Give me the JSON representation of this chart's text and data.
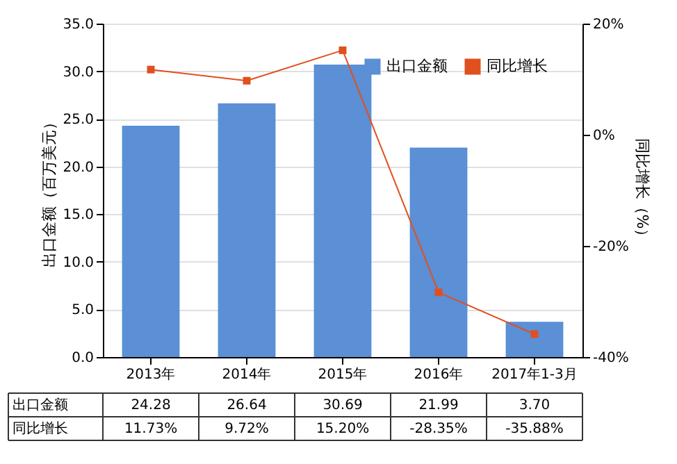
{
  "chart_data": {
    "type": "bar",
    "categories": [
      "2013年",
      "2014年",
      "2015年",
      "2016年",
      "2017年1-3月"
    ],
    "ylabel": "出口金额（百万美元）",
    "y2label": "同比增长（%）",
    "series": [
      {
        "name": "出口金额",
        "color": "#5b8fd6",
        "values": [
          24.28,
          26.64,
          30.69,
          21.99,
          3.7
        ],
        "value_labels": [
          "24.28",
          "26.64",
          "30.69",
          "21.99",
          "3.70"
        ]
      },
      {
        "name": "同比增长",
        "type": "line",
        "axis": "y2",
        "color": "#e0501f",
        "marker": "square",
        "values": [
          11.73,
          9.72,
          15.2,
          -28.35,
          -35.88
        ],
        "value_labels": [
          "11.73%",
          "9.72%",
          "15.20%",
          "-28.35%",
          "-35.88%"
        ]
      }
    ],
    "ylim": [
      0,
      35
    ],
    "yticks": [
      {
        "value": 0,
        "label": "0.0"
      },
      {
        "value": 5,
        "label": "5.0"
      },
      {
        "value": 10,
        "label": "10.0"
      },
      {
        "value": 15,
        "label": "15.0"
      },
      {
        "value": 20,
        "label": "20.0"
      },
      {
        "value": 25,
        "label": "25.0"
      },
      {
        "value": 30,
        "label": "30.0"
      },
      {
        "value": 35,
        "label": "35.0"
      }
    ],
    "y2lim": [
      -40,
      20
    ],
    "y2ticks": [
      {
        "value": -40,
        "label": "-40%"
      },
      {
        "value": -20,
        "label": "-20%"
      },
      {
        "value": 0,
        "label": "0%"
      },
      {
        "value": 20,
        "label": "20%"
      }
    ],
    "grid": "y",
    "legend": "top right",
    "data_labels": true
  }
}
